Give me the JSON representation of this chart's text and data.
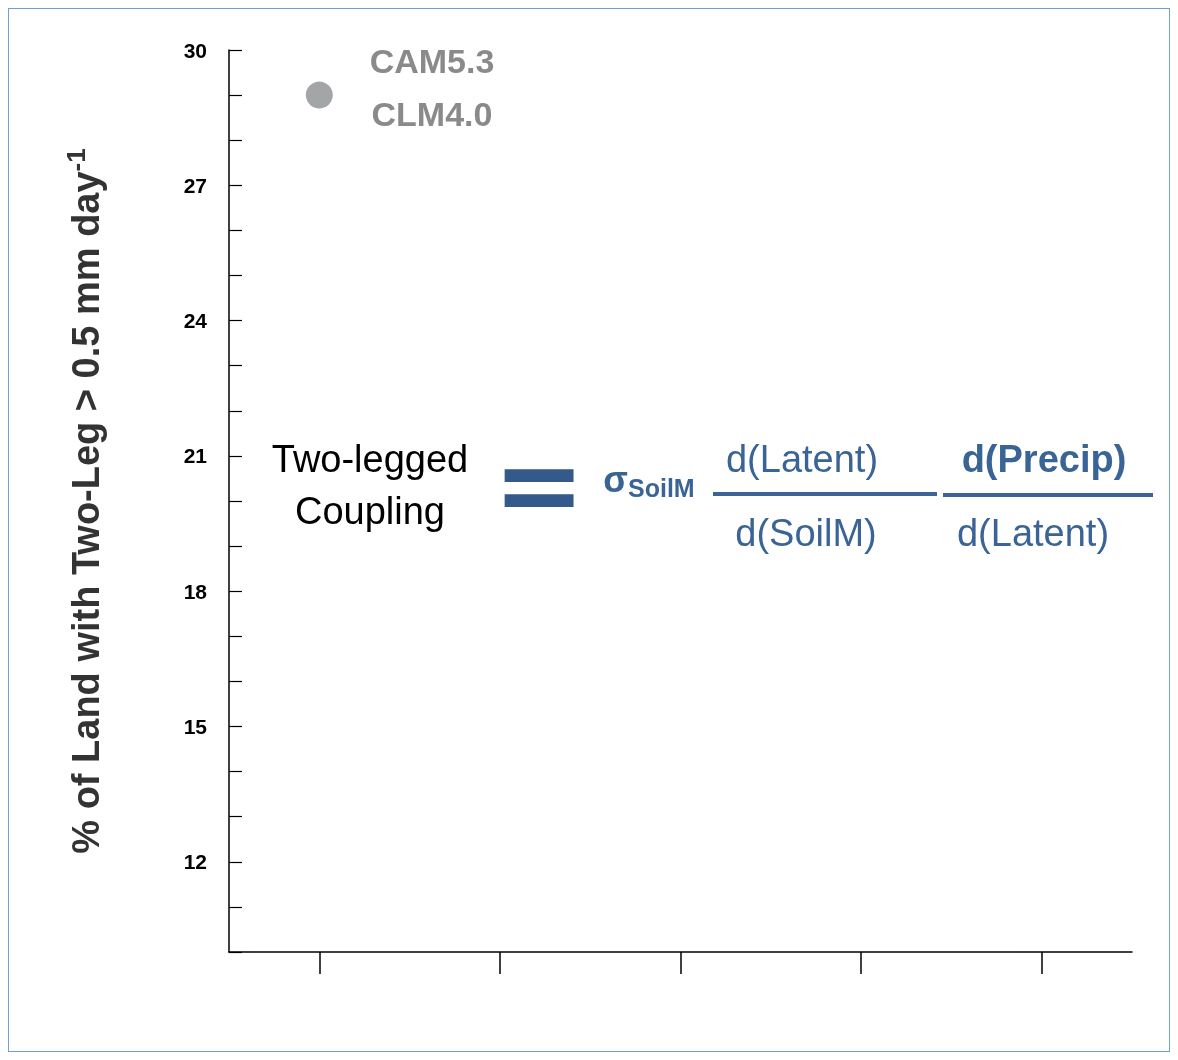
{
  "chart_data": {
    "type": "scatter",
    "ylabel": "% of Land with Two-Leg > 0.5 mm day$^{-1}$",
    "categories": [
      null,
      null,
      null,
      null,
      null
    ],
    "series": [
      {
        "color": "#8c9090",
        "values": [
          29,
          null,
          null,
          null,
          null
        ]
      }
    ],
    "ylim": [
      10,
      30
    ],
    "yticks": [
      {
        "value": 10,
        "label": null
      },
      {
        "value": 11,
        "label": null
      },
      12,
      {
        "value": 13,
        "label": null
      },
      {
        "value": 14,
        "label": null
      },
      15,
      {
        "value": 16,
        "label": null
      },
      {
        "value": 17,
        "label": null
      },
      18,
      {
        "value": 19,
        "label": null
      },
      {
        "value": 20,
        "label": null
      },
      21,
      {
        "value": 22,
        "label": null
      },
      {
        "value": 23,
        "label": null
      },
      24,
      {
        "value": 25,
        "label": null
      },
      {
        "value": 26,
        "label": null
      },
      27,
      {
        "value": 28,
        "label": null
      },
      {
        "value": 29,
        "label": null
      },
      30
    ],
    "tick_labels": "y",
    "grid": false,
    "marker": "circle",
    "annotations": [
      "CAM5.3",
      "CLM4.0",
      "Two-legged\nCoupling",
      "=",
      "σ$_{SoilM}$",
      "d(Latent)",
      "d(SoilM)",
      "d(Precip)",
      "d(Latent)"
    ]
  }
}
